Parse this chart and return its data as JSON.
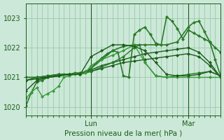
{
  "bg_color": "#cce8d8",
  "grid_color": "#99ccaa",
  "line_color_dark": "#1a5c1a",
  "line_color_mid": "#2a7a2a",
  "line_color_light": "#3a9a3a",
  "ylim": [
    1019.7,
    1023.5
  ],
  "yticks": [
    1020,
    1021,
    1022,
    1023
  ],
  "xlabel": "Pression niveau de la mer( hPa )",
  "lun_x": 24,
  "mar_x": 60,
  "xlim": [
    0,
    72
  ],
  "series": [
    {
      "x": [
        0,
        2,
        4,
        6,
        8,
        10,
        12,
        14,
        16,
        18,
        20,
        22,
        24,
        26,
        28,
        30,
        32,
        34,
        36,
        38,
        40,
        42,
        44,
        46,
        48,
        50,
        52,
        54,
        56,
        58,
        60,
        62,
        64,
        66,
        68,
        70,
        72
      ],
      "y": [
        1020.05,
        1020.5,
        1020.85,
        1020.9,
        1021.0,
        1021.05,
        1021.1,
        1021.1,
        1021.1,
        1021.15,
        1021.15,
        1021.2,
        1021.3,
        1021.5,
        1021.65,
        1021.8,
        1021.9,
        1021.85,
        1021.05,
        1021.0,
        1022.45,
        1022.6,
        1022.7,
        1022.45,
        1022.15,
        1022.1,
        1023.05,
        1022.9,
        1022.65,
        1022.3,
        1022.6,
        1022.5,
        1022.4,
        1022.3,
        1022.2,
        1021.6,
        1021.05
      ],
      "lw": 1.2,
      "color": "#2a7a2a"
    },
    {
      "x": [
        0,
        4,
        8,
        12,
        16,
        20,
        24,
        28,
        32,
        36,
        40,
        44,
        48,
        52,
        56,
        60,
        64,
        68,
        72
      ],
      "y": [
        1020.55,
        1020.9,
        1021.0,
        1021.05,
        1021.1,
        1021.1,
        1021.25,
        1021.4,
        1021.5,
        1021.6,
        1021.7,
        1021.8,
        1021.85,
        1021.9,
        1021.95,
        1022.0,
        1021.85,
        1021.5,
        1021.0
      ],
      "lw": 1.0,
      "color": "#1a5c1a"
    },
    {
      "x": [
        0,
        4,
        8,
        12,
        16,
        20,
        24,
        28,
        32,
        36,
        40,
        44,
        48,
        52,
        56,
        60,
        64,
        68,
        72
      ],
      "y": [
        1020.9,
        1021.0,
        1021.0,
        1021.05,
        1021.1,
        1021.1,
        1021.2,
        1021.3,
        1021.4,
        1021.5,
        1021.55,
        1021.6,
        1021.65,
        1021.7,
        1021.75,
        1021.8,
        1021.7,
        1021.4,
        1021.0
      ],
      "lw": 1.0,
      "color": "#1a5c1a"
    },
    {
      "x": [
        0,
        4,
        8,
        12,
        16,
        20,
        24,
        28,
        32,
        36,
        40,
        42,
        44,
        48,
        52,
        56,
        60,
        64,
        68,
        72
      ],
      "y": [
        1021.0,
        1021.0,
        1021.05,
        1021.1,
        1021.1,
        1021.1,
        1021.2,
        1021.35,
        1021.5,
        1021.7,
        1022.0,
        1022.1,
        1021.5,
        1021.05,
        1021.0,
        1021.05,
        1021.1,
        1021.15,
        1021.2,
        1021.05
      ],
      "lw": 1.0,
      "color": "#2a7a2a"
    },
    {
      "x": [
        0,
        4,
        8,
        12,
        16,
        20,
        24,
        28,
        32,
        36,
        40,
        44,
        48,
        52,
        56,
        60,
        62,
        64,
        66,
        68,
        70,
        72
      ],
      "y": [
        1021.0,
        1021.0,
        1021.05,
        1021.1,
        1021.1,
        1021.1,
        1021.3,
        1021.6,
        1021.9,
        1022.05,
        1022.1,
        1022.1,
        1022.1,
        1022.1,
        1022.2,
        1022.7,
        1022.85,
        1022.9,
        1022.55,
        1022.2,
        1022.0,
        1021.85
      ],
      "lw": 1.2,
      "color": "#2a7a2a"
    },
    {
      "x": [
        0,
        2,
        4,
        6,
        8,
        10,
        12,
        14,
        16,
        18,
        20,
        22,
        24,
        28,
        32,
        36,
        40,
        44,
        48,
        52,
        56,
        60,
        64,
        68,
        72
      ],
      "y": [
        1020.3,
        1020.5,
        1020.65,
        1020.35,
        1020.45,
        1020.55,
        1020.7,
        1021.0,
        1021.05,
        1021.1,
        1021.1,
        1021.15,
        1021.4,
        1021.6,
        1021.75,
        1021.9,
        1022.1,
        1021.5,
        1021.05,
        1021.0,
        1021.0,
        1021.0,
        1021.0,
        1021.0,
        1021.0
      ],
      "lw": 1.0,
      "color": "#3a9a3a"
    },
    {
      "x": [
        0,
        4,
        8,
        12,
        16,
        20,
        24,
        28,
        32,
        36,
        40,
        44,
        48,
        52,
        56,
        60,
        64,
        68,
        72
      ],
      "y": [
        1020.9,
        1020.95,
        1021.0,
        1021.05,
        1021.1,
        1021.1,
        1021.7,
        1021.9,
        1022.1,
        1022.1,
        1022.05,
        1021.9,
        1021.5,
        1021.1,
        1021.05,
        1021.05,
        1021.1,
        1021.2,
        1021.05
      ],
      "lw": 1.0,
      "color": "#1a5c1a"
    }
  ]
}
